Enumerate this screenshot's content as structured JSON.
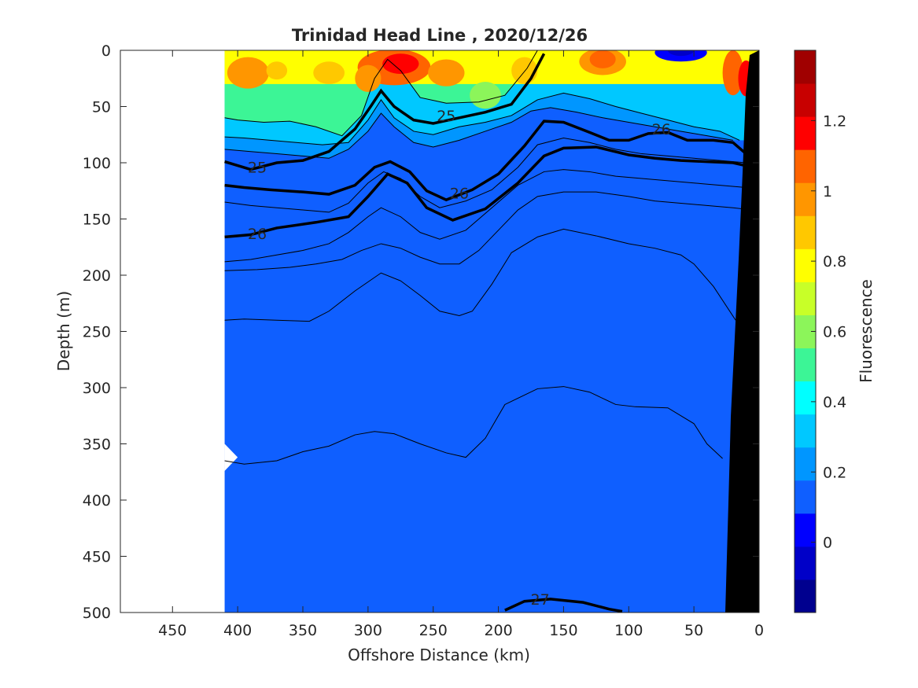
{
  "chart_data": {
    "type": "heatmap",
    "title": "Trinidad Head Line , 2020/12/26",
    "xlabel": "Offshore Distance (km)",
    "ylabel": "Depth (m)",
    "colorbar_label": "Fluorescence",
    "xlim": [
      490,
      0
    ],
    "ylim": [
      0,
      500
    ],
    "x_ticks": [
      "450",
      "400",
      "350",
      "300",
      "250",
      "200",
      "150",
      "100",
      "50",
      "0"
    ],
    "x_tick_values": [
      450,
      400,
      350,
      300,
      250,
      200,
      150,
      100,
      50,
      0
    ],
    "y_ticks": [
      "0",
      "50",
      "100",
      "150",
      "200",
      "250",
      "300",
      "350",
      "400",
      "450",
      "500"
    ],
    "y_tick_values": [
      0,
      50,
      100,
      150,
      200,
      250,
      300,
      350,
      400,
      450,
      500
    ],
    "colorbar": {
      "range": [
        -0.2,
        1.4
      ],
      "ticks": [
        "0",
        "0.2",
        "0.4",
        "0.6",
        "0.8",
        "1",
        "1.2"
      ],
      "tick_values": [
        0,
        0.2,
        0.4,
        0.6,
        0.8,
        1.0,
        1.2
      ],
      "colors": [
        "#00008f",
        "#0000c8",
        "#0000ff",
        "#0f5fff",
        "#0096ff",
        "#00c8ff",
        "#00ffff",
        "#3cf596",
        "#8cf55a",
        "#c8ff28",
        "#ffff00",
        "#ffc800",
        "#ff9600",
        "#ff6400",
        "#ff0000",
        "#c80000",
        "#a00000"
      ]
    },
    "no_data_region_km": [
      490,
      410
    ],
    "density_contours": [
      {
        "label": "25",
        "bold": true,
        "points": [
          [
            410,
            99
          ],
          [
            390,
            106
          ],
          [
            370,
            100
          ],
          [
            350,
            98
          ],
          [
            330,
            90
          ],
          [
            310,
            70
          ],
          [
            298,
            50
          ],
          [
            290,
            36
          ],
          [
            280,
            50
          ],
          [
            265,
            62
          ],
          [
            250,
            65
          ],
          [
            230,
            60
          ],
          [
            210,
            55
          ],
          [
            190,
            48
          ],
          [
            175,
            25
          ],
          [
            165,
            3
          ]
        ],
        "labels": [
          {
            "text": "25",
            "x": 385,
            "y": 104
          },
          {
            "text": "25",
            "x": 240,
            "y": 58
          }
        ]
      },
      {
        "label": "26",
        "bold": true,
        "points": [
          [
            410,
            120
          ],
          [
            395,
            122
          ],
          [
            375,
            124
          ],
          [
            350,
            126
          ],
          [
            330,
            128
          ],
          [
            310,
            120
          ],
          [
            295,
            104
          ],
          [
            283,
            99
          ],
          [
            268,
            108
          ],
          [
            255,
            125
          ],
          [
            240,
            133
          ],
          [
            220,
            124
          ],
          [
            200,
            110
          ],
          [
            180,
            85
          ],
          [
            165,
            63
          ],
          [
            150,
            64
          ],
          [
            130,
            73
          ],
          [
            115,
            80
          ],
          [
            100,
            80
          ],
          [
            85,
            74
          ],
          [
            70,
            73
          ],
          [
            55,
            80
          ],
          [
            35,
            80
          ],
          [
            20,
            82
          ],
          [
            10,
            92
          ]
        ],
        "labels": [
          {
            "text": "26",
            "x": 230,
            "y": 127
          },
          {
            "text": "26",
            "x": 75,
            "y": 70
          }
        ]
      },
      {
        "label": "26",
        "bold": true,
        "points": [
          [
            410,
            166
          ],
          [
            390,
            164
          ],
          [
            370,
            158
          ],
          [
            340,
            153
          ],
          [
            315,
            148
          ],
          [
            300,
            130
          ],
          [
            285,
            110
          ],
          [
            270,
            118
          ],
          [
            255,
            140
          ],
          [
            235,
            151
          ],
          [
            210,
            141
          ],
          [
            185,
            118
          ],
          [
            165,
            94
          ],
          [
            150,
            87
          ],
          [
            125,
            86
          ],
          [
            100,
            93
          ],
          [
            80,
            96
          ],
          [
            60,
            98
          ],
          [
            40,
            99
          ],
          [
            20,
            100
          ],
          [
            5,
            104
          ]
        ],
        "labels": [
          {
            "text": "26",
            "x": 385,
            "y": 163
          }
        ]
      },
      {
        "label": "27",
        "bold": true,
        "points": [
          [
            195,
            498
          ],
          [
            180,
            490
          ],
          [
            160,
            488
          ],
          [
            135,
            491
          ],
          [
            115,
            497
          ],
          [
            105,
            499
          ]
        ],
        "labels": [
          {
            "text": "27",
            "x": 168,
            "y": 488
          }
        ]
      }
    ],
    "thin_contours": [
      [
        [
          410,
          60
        ],
        [
          400,
          62
        ],
        [
          380,
          64
        ],
        [
          360,
          63
        ],
        [
          340,
          68
        ],
        [
          320,
          76
        ],
        [
          305,
          58
        ],
        [
          295,
          25
        ],
        [
          285,
          8
        ],
        [
          275,
          18
        ],
        [
          260,
          42
        ],
        [
          240,
          47
        ],
        [
          215,
          46
        ],
        [
          195,
          40
        ],
        [
          178,
          16
        ],
        [
          170,
          0
        ]
      ],
      [
        [
          410,
          77
        ],
        [
          395,
          78
        ],
        [
          375,
          80
        ],
        [
          355,
          82
        ],
        [
          335,
          84
        ],
        [
          315,
          82
        ],
        [
          300,
          62
        ],
        [
          290,
          44
        ],
        [
          280,
          60
        ],
        [
          265,
          72
        ],
        [
          250,
          75
        ],
        [
          230,
          68
        ],
        [
          210,
          64
        ],
        [
          190,
          58
        ],
        [
          170,
          44
        ],
        [
          150,
          38
        ],
        [
          130,
          43
        ],
        [
          110,
          50
        ],
        [
          90,
          56
        ],
        [
          70,
          62
        ],
        [
          50,
          68
        ],
        [
          30,
          72
        ],
        [
          15,
          80
        ]
      ],
      [
        [
          410,
          88
        ],
        [
          390,
          90
        ],
        [
          370,
          92
        ],
        [
          350,
          94
        ],
        [
          330,
          96
        ],
        [
          315,
          88
        ],
        [
          300,
          72
        ],
        [
          290,
          56
        ],
        [
          280,
          68
        ],
        [
          265,
          82
        ],
        [
          250,
          86
        ],
        [
          230,
          80
        ],
        [
          210,
          72
        ],
        [
          190,
          64
        ],
        [
          175,
          54
        ],
        [
          160,
          51
        ],
        [
          140,
          55
        ],
        [
          120,
          60
        ],
        [
          100,
          64
        ],
        [
          80,
          68
        ],
        [
          60,
          72
        ],
        [
          40,
          76
        ],
        [
          20,
          80
        ]
      ],
      [
        [
          410,
          135
        ],
        [
          390,
          138
        ],
        [
          370,
          140
        ],
        [
          350,
          142
        ],
        [
          330,
          144
        ],
        [
          315,
          136
        ],
        [
          300,
          118
        ],
        [
          288,
          108
        ],
        [
          275,
          114
        ],
        [
          260,
          130
        ],
        [
          245,
          140
        ],
        [
          225,
          134
        ],
        [
          205,
          124
        ],
        [
          185,
          104
        ],
        [
          170,
          84
        ],
        [
          150,
          78
        ],
        [
          130,
          82
        ],
        [
          110,
          88
        ],
        [
          90,
          92
        ],
        [
          70,
          94
        ],
        [
          50,
          96
        ],
        [
          30,
          98
        ],
        [
          10,
          100
        ]
      ],
      [
        [
          410,
          188
        ],
        [
          390,
          186
        ],
        [
          370,
          182
        ],
        [
          350,
          178
        ],
        [
          330,
          172
        ],
        [
          315,
          162
        ],
        [
          300,
          148
        ],
        [
          290,
          140
        ],
        [
          275,
          148
        ],
        [
          260,
          162
        ],
        [
          245,
          168
        ],
        [
          225,
          160
        ],
        [
          205,
          140
        ],
        [
          185,
          120
        ],
        [
          165,
          108
        ],
        [
          150,
          106
        ],
        [
          130,
          108
        ],
        [
          110,
          112
        ],
        [
          90,
          114
        ],
        [
          70,
          116
        ],
        [
          50,
          118
        ],
        [
          30,
          120
        ],
        [
          10,
          122
        ]
      ],
      [
        [
          410,
          196
        ],
        [
          385,
          195
        ],
        [
          360,
          193
        ],
        [
          340,
          190
        ],
        [
          320,
          186
        ],
        [
          305,
          178
        ],
        [
          290,
          172
        ],
        [
          275,
          176
        ],
        [
          260,
          184
        ],
        [
          245,
          190
        ],
        [
          230,
          190
        ],
        [
          215,
          178
        ],
        [
          200,
          160
        ],
        [
          185,
          142
        ],
        [
          170,
          130
        ],
        [
          150,
          126
        ],
        [
          125,
          126
        ],
        [
          100,
          130
        ],
        [
          80,
          134
        ],
        [
          60,
          136
        ],
        [
          40,
          138
        ],
        [
          20,
          140
        ],
        [
          5,
          142
        ]
      ],
      [
        [
          410,
          240
        ],
        [
          395,
          239
        ],
        [
          370,
          240
        ],
        [
          345,
          241
        ],
        [
          330,
          232
        ],
        [
          310,
          214
        ],
        [
          290,
          198
        ],
        [
          275,
          205
        ],
        [
          260,
          218
        ],
        [
          245,
          232
        ],
        [
          230,
          236
        ],
        [
          220,
          232
        ],
        [
          205,
          208
        ],
        [
          190,
          180
        ],
        [
          170,
          166
        ],
        [
          150,
          159
        ],
        [
          125,
          165
        ],
        [
          100,
          172
        ],
        [
          80,
          176
        ],
        [
          60,
          182
        ],
        [
          50,
          190
        ],
        [
          35,
          210
        ],
        [
          18,
          240
        ]
      ],
      [
        [
          410,
          365
        ],
        [
          395,
          368
        ],
        [
          370,
          365
        ],
        [
          350,
          357
        ],
        [
          330,
          352
        ],
        [
          310,
          342
        ],
        [
          295,
          339
        ],
        [
          280,
          341
        ],
        [
          260,
          350
        ],
        [
          240,
          358
        ],
        [
          225,
          362
        ],
        [
          210,
          345
        ],
        [
          195,
          315
        ],
        [
          170,
          301
        ],
        [
          150,
          299
        ],
        [
          130,
          304
        ],
        [
          110,
          315
        ],
        [
          95,
          317
        ],
        [
          70,
          318
        ],
        [
          50,
          332
        ],
        [
          40,
          350
        ],
        [
          28,
          363
        ]
      ]
    ]
  }
}
